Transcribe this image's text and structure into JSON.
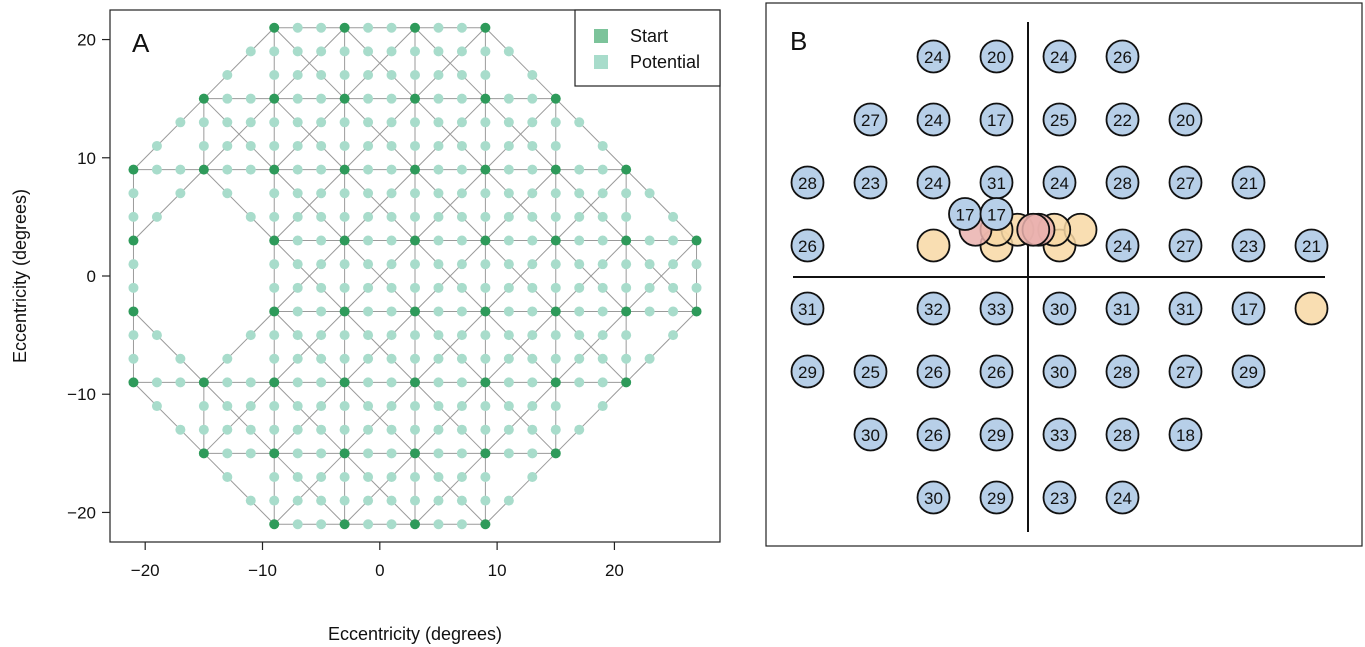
{
  "chart_data": [
    {
      "panel": "A",
      "type": "scatter",
      "xlabel": "Eccentricity (degrees)",
      "ylabel": "Eccentricity (degrees)",
      "xlim": [
        -23,
        29
      ],
      "ylim": [
        -22.5,
        22.5
      ],
      "xticks": [
        -20,
        -10,
        0,
        10,
        20
      ],
      "yticks": [
        -20,
        -10,
        0,
        10,
        20
      ],
      "xtick_labels": [
        "−20",
        "−10",
        "0",
        "10",
        "20"
      ],
      "ytick_labels": [
        "−20",
        "−10",
        "0",
        "10",
        "20"
      ],
      "legend": {
        "placement": "top-right",
        "entries": [
          "Start",
          "Potential"
        ]
      },
      "colors": {
        "start": "#2e9a5a",
        "potential": "#a8dccb",
        "edge": "#9a9a9a"
      },
      "series": [
        {
          "name": "Start",
          "points": [
            [
              -9,
              21
            ],
            [
              -3,
              21
            ],
            [
              3,
              21
            ],
            [
              9,
              21
            ],
            [
              -15,
              15
            ],
            [
              -9,
              15
            ],
            [
              -3,
              15
            ],
            [
              3,
              15
            ],
            [
              9,
              15
            ],
            [
              15,
              15
            ],
            [
              -21,
              9
            ],
            [
              -15,
              9
            ],
            [
              -9,
              9
            ],
            [
              -3,
              9
            ],
            [
              3,
              9
            ],
            [
              9,
              9
            ],
            [
              15,
              9
            ],
            [
              21,
              9
            ],
            [
              -21,
              3
            ],
            [
              -9,
              3
            ],
            [
              -3,
              3
            ],
            [
              3,
              3
            ],
            [
              9,
              3
            ],
            [
              15,
              3
            ],
            [
              21,
              3
            ],
            [
              27,
              3
            ],
            [
              -21,
              -3
            ],
            [
              -9,
              -3
            ],
            [
              -3,
              -3
            ],
            [
              3,
              -3
            ],
            [
              9,
              -3
            ],
            [
              15,
              -3
            ],
            [
              21,
              -3
            ],
            [
              27,
              -3
            ],
            [
              -21,
              -9
            ],
            [
              -15,
              -9
            ],
            [
              -9,
              -9
            ],
            [
              -3,
              -9
            ],
            [
              3,
              -9
            ],
            [
              9,
              -9
            ],
            [
              15,
              -9
            ],
            [
              21,
              -9
            ],
            [
              -15,
              -15
            ],
            [
              -9,
              -15
            ],
            [
              -3,
              -15
            ],
            [
              3,
              -15
            ],
            [
              9,
              -15
            ],
            [
              15,
              -15
            ],
            [
              -9,
              -21
            ],
            [
              -3,
              -21
            ],
            [
              3,
              -21
            ],
            [
              9,
              -21
            ]
          ]
        },
        {
          "name": "Potential",
          "points": "lattice points at 2-degree spacing along the grid edges connecting Start locations"
        }
      ]
    },
    {
      "panel": "B",
      "type": "scatter",
      "xlim": [
        -27,
        36
      ],
      "ylim": [
        -27,
        28
      ],
      "locations": [
        {
          "x": -9,
          "y": 21,
          "label": "24",
          "kind": "blue"
        },
        {
          "x": -3,
          "y": 21,
          "label": "20",
          "kind": "blue"
        },
        {
          "x": 3,
          "y": 21,
          "label": "24",
          "kind": "blue"
        },
        {
          "x": 9,
          "y": 21,
          "label": "26",
          "kind": "blue"
        },
        {
          "x": -15,
          "y": 15,
          "label": "27",
          "kind": "blue"
        },
        {
          "x": -9,
          "y": 15,
          "label": "24",
          "kind": "blue"
        },
        {
          "x": -3,
          "y": 15,
          "label": "17",
          "kind": "blue"
        },
        {
          "x": 3,
          "y": 15,
          "label": "25",
          "kind": "blue"
        },
        {
          "x": 9,
          "y": 15,
          "label": "22",
          "kind": "blue"
        },
        {
          "x": 15,
          "y": 15,
          "label": "20",
          "kind": "blue"
        },
        {
          "x": -21,
          "y": 9,
          "label": "28",
          "kind": "blue"
        },
        {
          "x": -15,
          "y": 9,
          "label": "23",
          "kind": "blue"
        },
        {
          "x": -9,
          "y": 9,
          "label": "24",
          "kind": "blue"
        },
        {
          "x": -3,
          "y": 9,
          "label": "31",
          "kind": "blue"
        },
        {
          "x": 3,
          "y": 9,
          "label": "24",
          "kind": "blue"
        },
        {
          "x": 9,
          "y": 9,
          "label": "28",
          "kind": "blue"
        },
        {
          "x": 15,
          "y": 9,
          "label": "27",
          "kind": "blue"
        },
        {
          "x": 21,
          "y": 9,
          "label": "21",
          "kind": "blue"
        },
        {
          "x": -21,
          "y": 3,
          "label": "26",
          "kind": "blue"
        },
        {
          "x": -9,
          "y": 3,
          "label": "",
          "kind": "orange"
        },
        {
          "x": -3,
          "y": 3,
          "label": "",
          "kind": "orange"
        },
        {
          "x": 3,
          "y": 3,
          "label": "",
          "kind": "orange"
        },
        {
          "x": 9,
          "y": 3,
          "label": "24",
          "kind": "blue"
        },
        {
          "x": 15,
          "y": 3,
          "label": "27",
          "kind": "blue"
        },
        {
          "x": 21,
          "y": 3,
          "label": "23",
          "kind": "blue"
        },
        {
          "x": 27,
          "y": 3,
          "label": "21",
          "kind": "blue"
        },
        {
          "x": -21,
          "y": -3,
          "label": "31",
          "kind": "blue"
        },
        {
          "x": -9,
          "y": -3,
          "label": "32",
          "kind": "blue"
        },
        {
          "x": -3,
          "y": -3,
          "label": "33",
          "kind": "blue"
        },
        {
          "x": 3,
          "y": -3,
          "label": "30",
          "kind": "blue"
        },
        {
          "x": 9,
          "y": -3,
          "label": "31",
          "kind": "blue"
        },
        {
          "x": 15,
          "y": -3,
          "label": "31",
          "kind": "blue"
        },
        {
          "x": 21,
          "y": -3,
          "label": "17",
          "kind": "blue"
        },
        {
          "x": 27,
          "y": -3,
          "label": "",
          "kind": "orange"
        },
        {
          "x": -21,
          "y": -9,
          "label": "29",
          "kind": "blue"
        },
        {
          "x": -15,
          "y": -9,
          "label": "25",
          "kind": "blue"
        },
        {
          "x": -9,
          "y": -9,
          "label": "26",
          "kind": "blue"
        },
        {
          "x": -3,
          "y": -9,
          "label": "26",
          "kind": "blue"
        },
        {
          "x": 3,
          "y": -9,
          "label": "30",
          "kind": "blue"
        },
        {
          "x": 9,
          "y": -9,
          "label": "28",
          "kind": "blue"
        },
        {
          "x": 15,
          "y": -9,
          "label": "27",
          "kind": "blue"
        },
        {
          "x": 21,
          "y": -9,
          "label": "29",
          "kind": "blue"
        },
        {
          "x": -15,
          "y": -15,
          "label": "30",
          "kind": "blue"
        },
        {
          "x": -9,
          "y": -15,
          "label": "26",
          "kind": "blue"
        },
        {
          "x": -3,
          "y": -15,
          "label": "29",
          "kind": "blue"
        },
        {
          "x": 3,
          "y": -15,
          "label": "33",
          "kind": "blue"
        },
        {
          "x": 9,
          "y": -15,
          "label": "28",
          "kind": "blue"
        },
        {
          "x": 15,
          "y": -15,
          "label": "18",
          "kind": "blue"
        },
        {
          "x": -9,
          "y": -21,
          "label": "30",
          "kind": "blue"
        },
        {
          "x": -3,
          "y": -21,
          "label": "29",
          "kind": "blue"
        },
        {
          "x": 3,
          "y": -21,
          "label": "23",
          "kind": "blue"
        },
        {
          "x": 9,
          "y": -21,
          "label": "24",
          "kind": "blue"
        },
        {
          "x": -5,
          "y": 4.5,
          "label": "",
          "kind": "red"
        },
        {
          "x": -1,
          "y": 4.5,
          "label": "",
          "kind": "orange"
        },
        {
          "x": 1,
          "y": 4.5,
          "label": "",
          "kind": "red"
        },
        {
          "x": 5,
          "y": 4.5,
          "label": "",
          "kind": "orange"
        },
        {
          "x": -3,
          "y": 4.5,
          "label": "",
          "kind": "orange"
        },
        {
          "x": 0.5,
          "y": 4.5,
          "label": "",
          "kind": "red"
        },
        {
          "x": 2.5,
          "y": 4.5,
          "label": "",
          "kind": "orange"
        },
        {
          "x": -6,
          "y": 6,
          "label": "17",
          "kind": "blue"
        },
        {
          "x": -3,
          "y": 6,
          "label": "17",
          "kind": "blue"
        }
      ],
      "colors": {
        "blue": "#b7cfe8",
        "orange": "#f8d8a4",
        "red": "#eab2ae"
      }
    }
  ],
  "panel_a": {
    "letter": "A",
    "xlabel": "Eccentricity (degrees)",
    "ylabel": "Eccentricity (degrees)",
    "legend_start": "Start",
    "legend_potential": "Potential"
  },
  "panel_b": {
    "letter": "B"
  }
}
